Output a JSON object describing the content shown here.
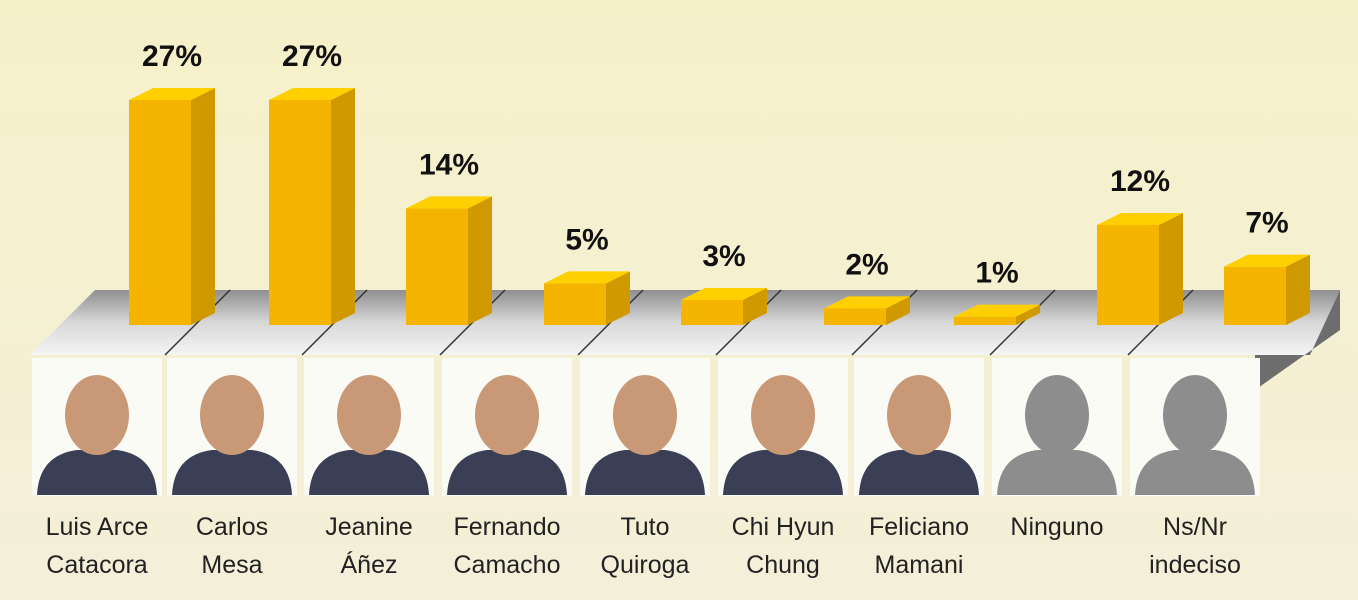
{
  "chart_data": {
    "type": "bar",
    "categories": [
      "Luis Arce Catacora",
      "Carlos Mesa",
      "Jeanine Áñez",
      "Fernando Camacho",
      "Tuto Quiroga",
      "Chi Hyun Chung",
      "Feliciano Mamani",
      "Ninguno",
      "Ns/Nr indeciso"
    ],
    "values": [
      27,
      27,
      14,
      5,
      3,
      2,
      1,
      12,
      7
    ],
    "value_labels": [
      "27%",
      "27%",
      "14%",
      "5%",
      "3%",
      "2%",
      "1%",
      "12%",
      "7%"
    ],
    "color": "#f5b400"
  }
}
